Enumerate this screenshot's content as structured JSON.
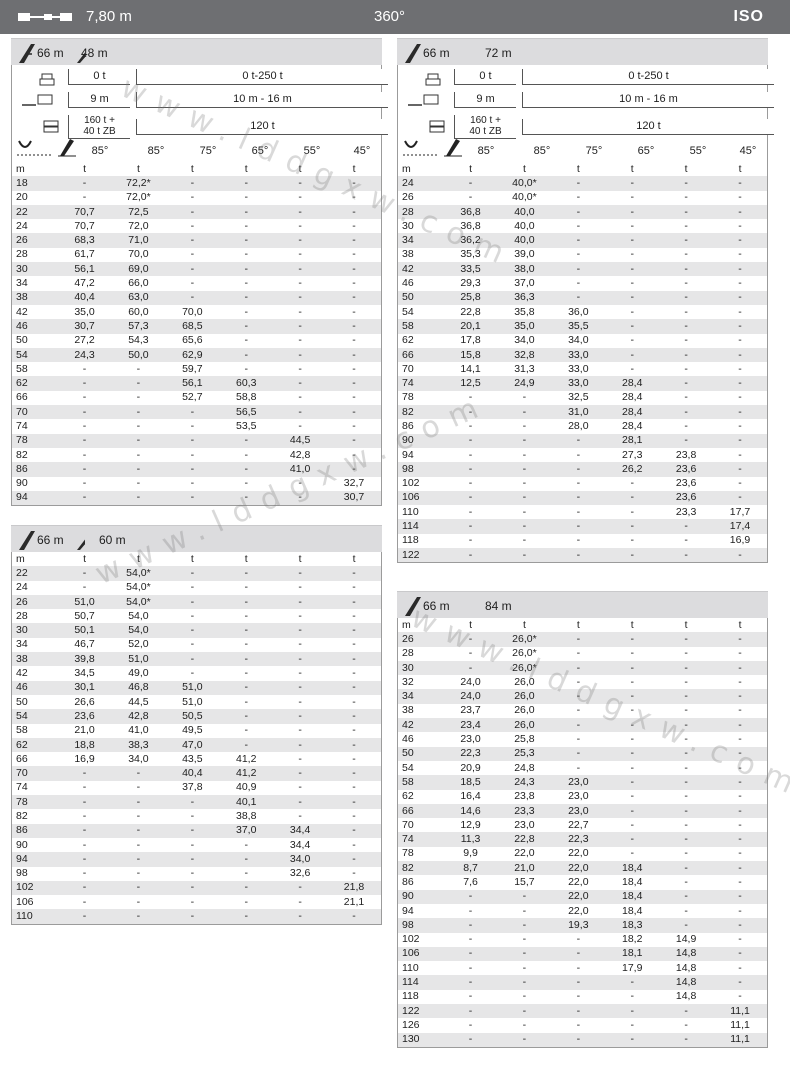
{
  "header": {
    "boom_length": "7,80 m",
    "slew": "360°",
    "standard": "ISO"
  },
  "config_labels": {
    "counterweight_left": "0 t",
    "counterweight_right": "0 t-250 t",
    "radius_left": "9 m",
    "radius_right": "10 m - 16 m",
    "ballast_left_line1": "160 t +",
    "ballast_left_line2": "40 t ZB",
    "ballast_right": "120 t"
  },
  "angles": [
    "85°",
    "85°",
    "75°",
    "65°",
    "55°",
    "45°"
  ],
  "units_row": [
    "m",
    "t",
    "t",
    "t",
    "t",
    "t",
    "t"
  ],
  "watermark_text": "www.lddgxw.com",
  "tables": {
    "t48": {
      "main_boom": "66 m",
      "jib": "48 m",
      "rows": [
        [
          "18",
          "-",
          "72,2*",
          "-",
          "-",
          "-",
          "-"
        ],
        [
          "20",
          "-",
          "72,0*",
          "-",
          "-",
          "-",
          "-"
        ],
        [
          "22",
          "70,7",
          "72,5",
          "-",
          "-",
          "-",
          "-"
        ],
        [
          "24",
          "70,7",
          "72,0",
          "-",
          "-",
          "-",
          "-"
        ],
        [
          "26",
          "68,3",
          "71,0",
          "-",
          "-",
          "-",
          "-"
        ],
        [
          "28",
          "61,7",
          "70,0",
          "-",
          "-",
          "-",
          "-"
        ],
        [
          "30",
          "56,1",
          "69,0",
          "-",
          "-",
          "-",
          "-"
        ],
        [
          "34",
          "47,2",
          "66,0",
          "-",
          "-",
          "-",
          "-"
        ],
        [
          "38",
          "40,4",
          "63,0",
          "-",
          "-",
          "-",
          "-"
        ],
        [
          "42",
          "35,0",
          "60,0",
          "70,0",
          "-",
          "-",
          "-"
        ],
        [
          "46",
          "30,7",
          "57,3",
          "68,5",
          "-",
          "-",
          "-"
        ],
        [
          "50",
          "27,2",
          "54,3",
          "65,6",
          "-",
          "-",
          "-"
        ],
        [
          "54",
          "24,3",
          "50,0",
          "62,9",
          "-",
          "-",
          "-"
        ],
        [
          "58",
          "-",
          "-",
          "59,7",
          "-",
          "-",
          "-"
        ],
        [
          "62",
          "-",
          "-",
          "56,1",
          "60,3",
          "-",
          "-"
        ],
        [
          "66",
          "-",
          "-",
          "52,7",
          "58,8",
          "-",
          "-"
        ],
        [
          "70",
          "-",
          "-",
          "-",
          "56,5",
          "-",
          "-"
        ],
        [
          "74",
          "-",
          "-",
          "-",
          "53,5",
          "-",
          "-"
        ],
        [
          "78",
          "-",
          "-",
          "-",
          "-",
          "44,5",
          "-"
        ],
        [
          "82",
          "-",
          "-",
          "-",
          "-",
          "42,8",
          "-"
        ],
        [
          "86",
          "-",
          "-",
          "-",
          "-",
          "41,0",
          "-"
        ],
        [
          "90",
          "-",
          "-",
          "-",
          "-",
          "-",
          "32,7"
        ],
        [
          "94",
          "-",
          "-",
          "-",
          "-",
          "-",
          "30,7"
        ]
      ]
    },
    "t60": {
      "main_boom": "66 m",
      "jib": "60 m",
      "rows": [
        [
          "22",
          "-",
          "54,0*",
          "-",
          "-",
          "-",
          "-"
        ],
        [
          "24",
          "-",
          "54,0*",
          "-",
          "-",
          "-",
          "-"
        ],
        [
          "26",
          "51,0",
          "54,0*",
          "-",
          "-",
          "-",
          "-"
        ],
        [
          "28",
          "50,7",
          "54,0",
          "-",
          "-",
          "-",
          "-"
        ],
        [
          "30",
          "50,1",
          "54,0",
          "-",
          "-",
          "-",
          "-"
        ],
        [
          "34",
          "46,7",
          "52,0",
          "-",
          "-",
          "-",
          "-"
        ],
        [
          "38",
          "39,8",
          "51,0",
          "-",
          "-",
          "-",
          "-"
        ],
        [
          "42",
          "34,5",
          "49,0",
          "-",
          "-",
          "-",
          "-"
        ],
        [
          "46",
          "30,1",
          "46,8",
          "51,0",
          "-",
          "-",
          "-"
        ],
        [
          "50",
          "26,6",
          "44,5",
          "51,0",
          "-",
          "-",
          "-"
        ],
        [
          "54",
          "23,6",
          "42,8",
          "50,5",
          "-",
          "-",
          "-"
        ],
        [
          "58",
          "21,0",
          "41,0",
          "49,5",
          "-",
          "-",
          "-"
        ],
        [
          "62",
          "18,8",
          "38,3",
          "47,0",
          "-",
          "-",
          "-"
        ],
        [
          "66",
          "16,9",
          "34,0",
          "43,5",
          "41,2",
          "-",
          "-"
        ],
        [
          "70",
          "-",
          "-",
          "40,4",
          "41,2",
          "-",
          "-"
        ],
        [
          "74",
          "-",
          "-",
          "37,8",
          "40,9",
          "-",
          "-"
        ],
        [
          "78",
          "-",
          "-",
          "-",
          "40,1",
          "-",
          "-"
        ],
        [
          "82",
          "-",
          "-",
          "-",
          "38,8",
          "-",
          "-"
        ],
        [
          "86",
          "-",
          "-",
          "-",
          "37,0",
          "34,4",
          "-"
        ],
        [
          "90",
          "-",
          "-",
          "-",
          "-",
          "34,4",
          "-"
        ],
        [
          "94",
          "-",
          "-",
          "-",
          "-",
          "34,0",
          "-"
        ],
        [
          "98",
          "-",
          "-",
          "-",
          "-",
          "32,6",
          "-"
        ],
        [
          "102",
          "-",
          "-",
          "-",
          "-",
          "-",
          "21,8"
        ],
        [
          "106",
          "-",
          "-",
          "-",
          "-",
          "-",
          "21,1"
        ],
        [
          "110",
          "-",
          "-",
          "-",
          "-",
          "-",
          "-"
        ]
      ]
    },
    "t72": {
      "main_boom": "66 m",
      "jib": "72 m",
      "rows": [
        [
          "24",
          "-",
          "40,0*",
          "-",
          "-",
          "-",
          "-"
        ],
        [
          "26",
          "-",
          "40,0*",
          "-",
          "-",
          "-",
          "-"
        ],
        [
          "28",
          "36,8",
          "40,0",
          "-",
          "-",
          "-",
          "-"
        ],
        [
          "30",
          "36,8",
          "40,0",
          "-",
          "-",
          "-",
          "-"
        ],
        [
          "34",
          "36,2",
          "40,0",
          "-",
          "-",
          "-",
          "-"
        ],
        [
          "38",
          "35,3",
          "39,0",
          "-",
          "-",
          "-",
          "-"
        ],
        [
          "42",
          "33,5",
          "38,0",
          "-",
          "-",
          "-",
          "-"
        ],
        [
          "46",
          "29,3",
          "37,0",
          "-",
          "-",
          "-",
          "-"
        ],
        [
          "50",
          "25,8",
          "36,3",
          "-",
          "-",
          "-",
          "-"
        ],
        [
          "54",
          "22,8",
          "35,8",
          "36,0",
          "-",
          "-",
          "-"
        ],
        [
          "58",
          "20,1",
          "35,0",
          "35,5",
          "-",
          "-",
          "-"
        ],
        [
          "62",
          "17,8",
          "34,0",
          "34,0",
          "-",
          "-",
          "-"
        ],
        [
          "66",
          "15,8",
          "32,8",
          "33,0",
          "-",
          "-",
          "-"
        ],
        [
          "70",
          "14,1",
          "31,3",
          "33,0",
          "-",
          "-",
          "-"
        ],
        [
          "74",
          "12,5",
          "24,9",
          "33,0",
          "28,4",
          "-",
          "-"
        ],
        [
          "78",
          "-",
          "-",
          "32,5",
          "28,4",
          "-",
          "-"
        ],
        [
          "82",
          "-",
          "-",
          "31,0",
          "28,4",
          "-",
          "-"
        ],
        [
          "86",
          "-",
          "-",
          "28,0",
          "28,4",
          "-",
          "-"
        ],
        [
          "90",
          "-",
          "-",
          "-",
          "28,1",
          "-",
          "-"
        ],
        [
          "94",
          "-",
          "-",
          "-",
          "27,3",
          "23,8",
          "-"
        ],
        [
          "98",
          "-",
          "-",
          "-",
          "26,2",
          "23,6",
          "-"
        ],
        [
          "102",
          "-",
          "-",
          "-",
          "-",
          "23,6",
          "-"
        ],
        [
          "106",
          "-",
          "-",
          "-",
          "-",
          "23,6",
          "-"
        ],
        [
          "110",
          "-",
          "-",
          "-",
          "-",
          "23,3",
          "17,7"
        ],
        [
          "114",
          "-",
          "-",
          "-",
          "-",
          "-",
          "17,4"
        ],
        [
          "118",
          "-",
          "-",
          "-",
          "-",
          "-",
          "16,9"
        ],
        [
          "122",
          "-",
          "-",
          "-",
          "-",
          "-",
          "-"
        ]
      ]
    },
    "t84": {
      "main_boom": "66 m",
      "jib": "84 m",
      "rows": [
        [
          "26",
          "-",
          "26,0*",
          "-",
          "-",
          "-",
          "-"
        ],
        [
          "28",
          "-",
          "26,0*",
          "-",
          "-",
          "-",
          "-"
        ],
        [
          "30",
          "-",
          "26,0*",
          "-",
          "-",
          "-",
          "-"
        ],
        [
          "32",
          "24,0",
          "26,0",
          "-",
          "-",
          "-",
          "-"
        ],
        [
          "34",
          "24,0",
          "26,0",
          "-",
          "-",
          "-",
          "-"
        ],
        [
          "38",
          "23,7",
          "26,0",
          "-",
          "-",
          "-",
          "-"
        ],
        [
          "42",
          "23,4",
          "26,0",
          "-",
          "-",
          "-",
          "-"
        ],
        [
          "46",
          "23,0",
          "25,8",
          "-",
          "-",
          "-",
          "-"
        ],
        [
          "50",
          "22,3",
          "25,3",
          "-",
          "-",
          "-",
          "-"
        ],
        [
          "54",
          "20,9",
          "24,8",
          "-",
          "-",
          "-",
          "-"
        ],
        [
          "58",
          "18,5",
          "24,3",
          "23,0",
          "-",
          "-",
          "-"
        ],
        [
          "62",
          "16,4",
          "23,8",
          "23,0",
          "-",
          "-",
          "-"
        ],
        [
          "66",
          "14,6",
          "23,3",
          "23,0",
          "-",
          "-",
          "-"
        ],
        [
          "70",
          "12,9",
          "23,0",
          "22,7",
          "-",
          "-",
          "-"
        ],
        [
          "74",
          "11,3",
          "22,8",
          "22,3",
          "-",
          "-",
          "-"
        ],
        [
          "78",
          "9,9",
          "22,0",
          "22,0",
          "-",
          "-",
          "-"
        ],
        [
          "82",
          "8,7",
          "21,0",
          "22,0",
          "18,4",
          "-",
          "-"
        ],
        [
          "86",
          "7,6",
          "15,7",
          "22,0",
          "18,4",
          "-",
          "-"
        ],
        [
          "90",
          "-",
          "-",
          "22,0",
          "18,4",
          "-",
          "-"
        ],
        [
          "94",
          "-",
          "-",
          "22,0",
          "18,4",
          "-",
          "-"
        ],
        [
          "98",
          "-",
          "-",
          "19,3",
          "18,3",
          "-",
          "-"
        ],
        [
          "102",
          "-",
          "-",
          "-",
          "18,2",
          "14,9",
          "-"
        ],
        [
          "106",
          "-",
          "-",
          "-",
          "18,1",
          "14,8",
          "-"
        ],
        [
          "110",
          "-",
          "-",
          "-",
          "17,9",
          "14,8",
          "-"
        ],
        [
          "114",
          "-",
          "-",
          "-",
          "-",
          "14,8",
          "-"
        ],
        [
          "118",
          "-",
          "-",
          "-",
          "-",
          "14,8",
          "-"
        ],
        [
          "122",
          "-",
          "-",
          "-",
          "-",
          "-",
          "11,1"
        ],
        [
          "126",
          "-",
          "-",
          "-",
          "-",
          "-",
          "11,1"
        ],
        [
          "130",
          "-",
          "-",
          "-",
          "-",
          "-",
          "11,1"
        ]
      ]
    }
  }
}
